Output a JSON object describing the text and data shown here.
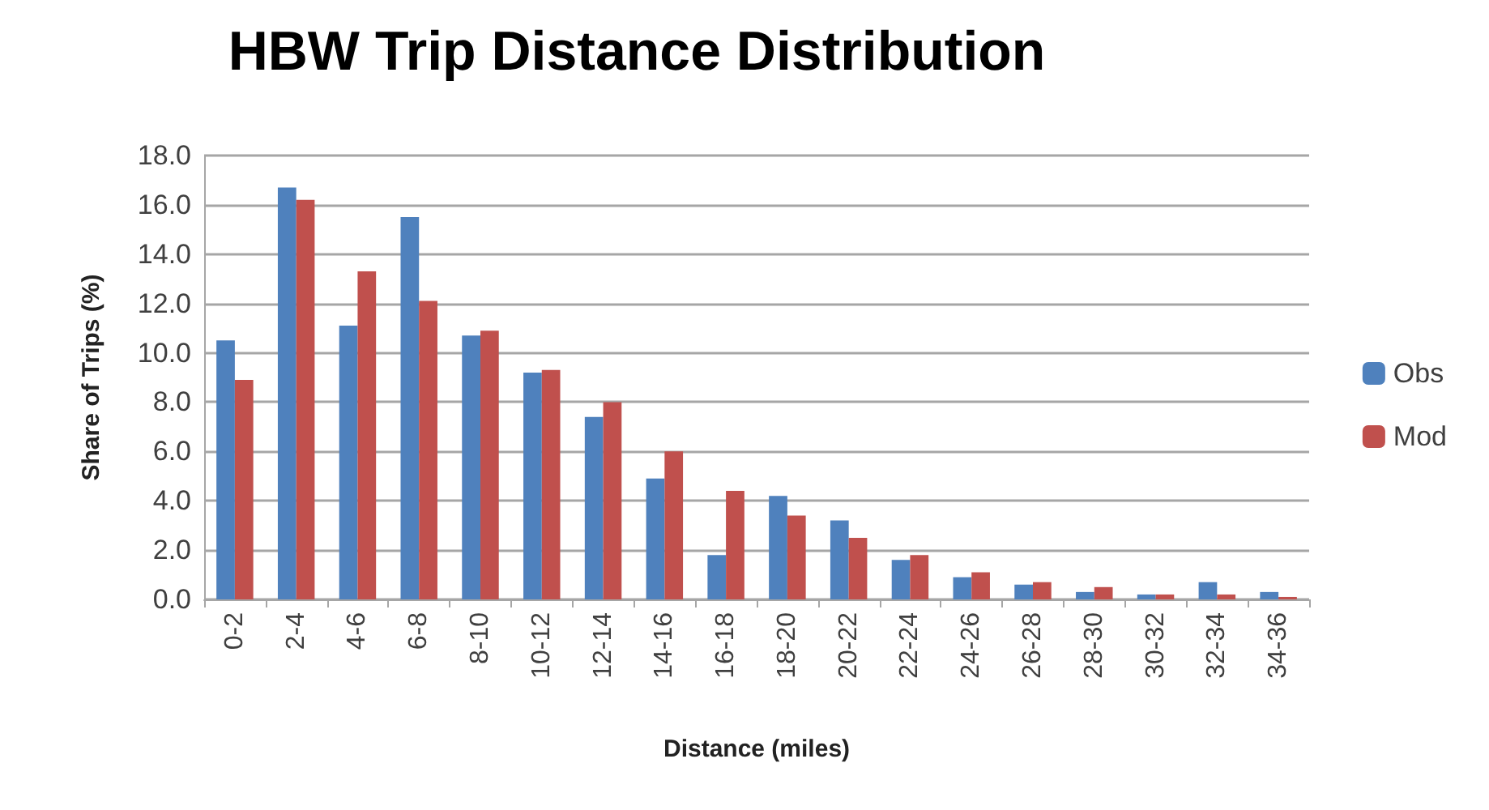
{
  "chart_data": {
    "type": "bar",
    "title": "HBW Trip Distance Distribution",
    "xlabel": "Distance (miles)",
    "ylabel": "Share of Trips (%)",
    "categories": [
      "0-2",
      "2-4",
      "4-6",
      "6-8",
      "8-10",
      "10-12",
      "12-14",
      "14-16",
      "16-18",
      "18-20",
      "20-22",
      "22-24",
      "24-26",
      "26-28",
      "28-30",
      "30-32",
      "32-34",
      "34-36"
    ],
    "series": [
      {
        "name": "Obs",
        "color": "#4f81bd",
        "values": [
          10.5,
          16.7,
          11.1,
          15.5,
          10.7,
          9.2,
          7.4,
          4.9,
          1.8,
          4.2,
          3.2,
          1.6,
          0.9,
          0.6,
          0.3,
          0.2,
          0.7,
          0.3
        ]
      },
      {
        "name": "Mod",
        "color": "#c0504d",
        "values": [
          8.9,
          16.2,
          13.3,
          12.1,
          10.9,
          9.3,
          8.0,
          6.0,
          4.4,
          3.4,
          2.5,
          1.8,
          1.1,
          0.7,
          0.5,
          0.2,
          0.2,
          0.1
        ]
      }
    ],
    "ylim": [
      0,
      18
    ],
    "yticks": [
      {
        "value": 0,
        "label": "0.0"
      },
      {
        "value": 2,
        "label": "2.0"
      },
      {
        "value": 4,
        "label": "4.0"
      },
      {
        "value": 6,
        "label": "6.0"
      },
      {
        "value": 8,
        "label": "8.0"
      },
      {
        "value": 10,
        "label": "10.0"
      },
      {
        "value": 12,
        "label": "12.0"
      },
      {
        "value": 14,
        "label": "14.0"
      },
      {
        "value": 16,
        "label": "16.0"
      },
      {
        "value": 18,
        "label": "18.0"
      }
    ],
    "grid": "y",
    "legend": "right"
  }
}
